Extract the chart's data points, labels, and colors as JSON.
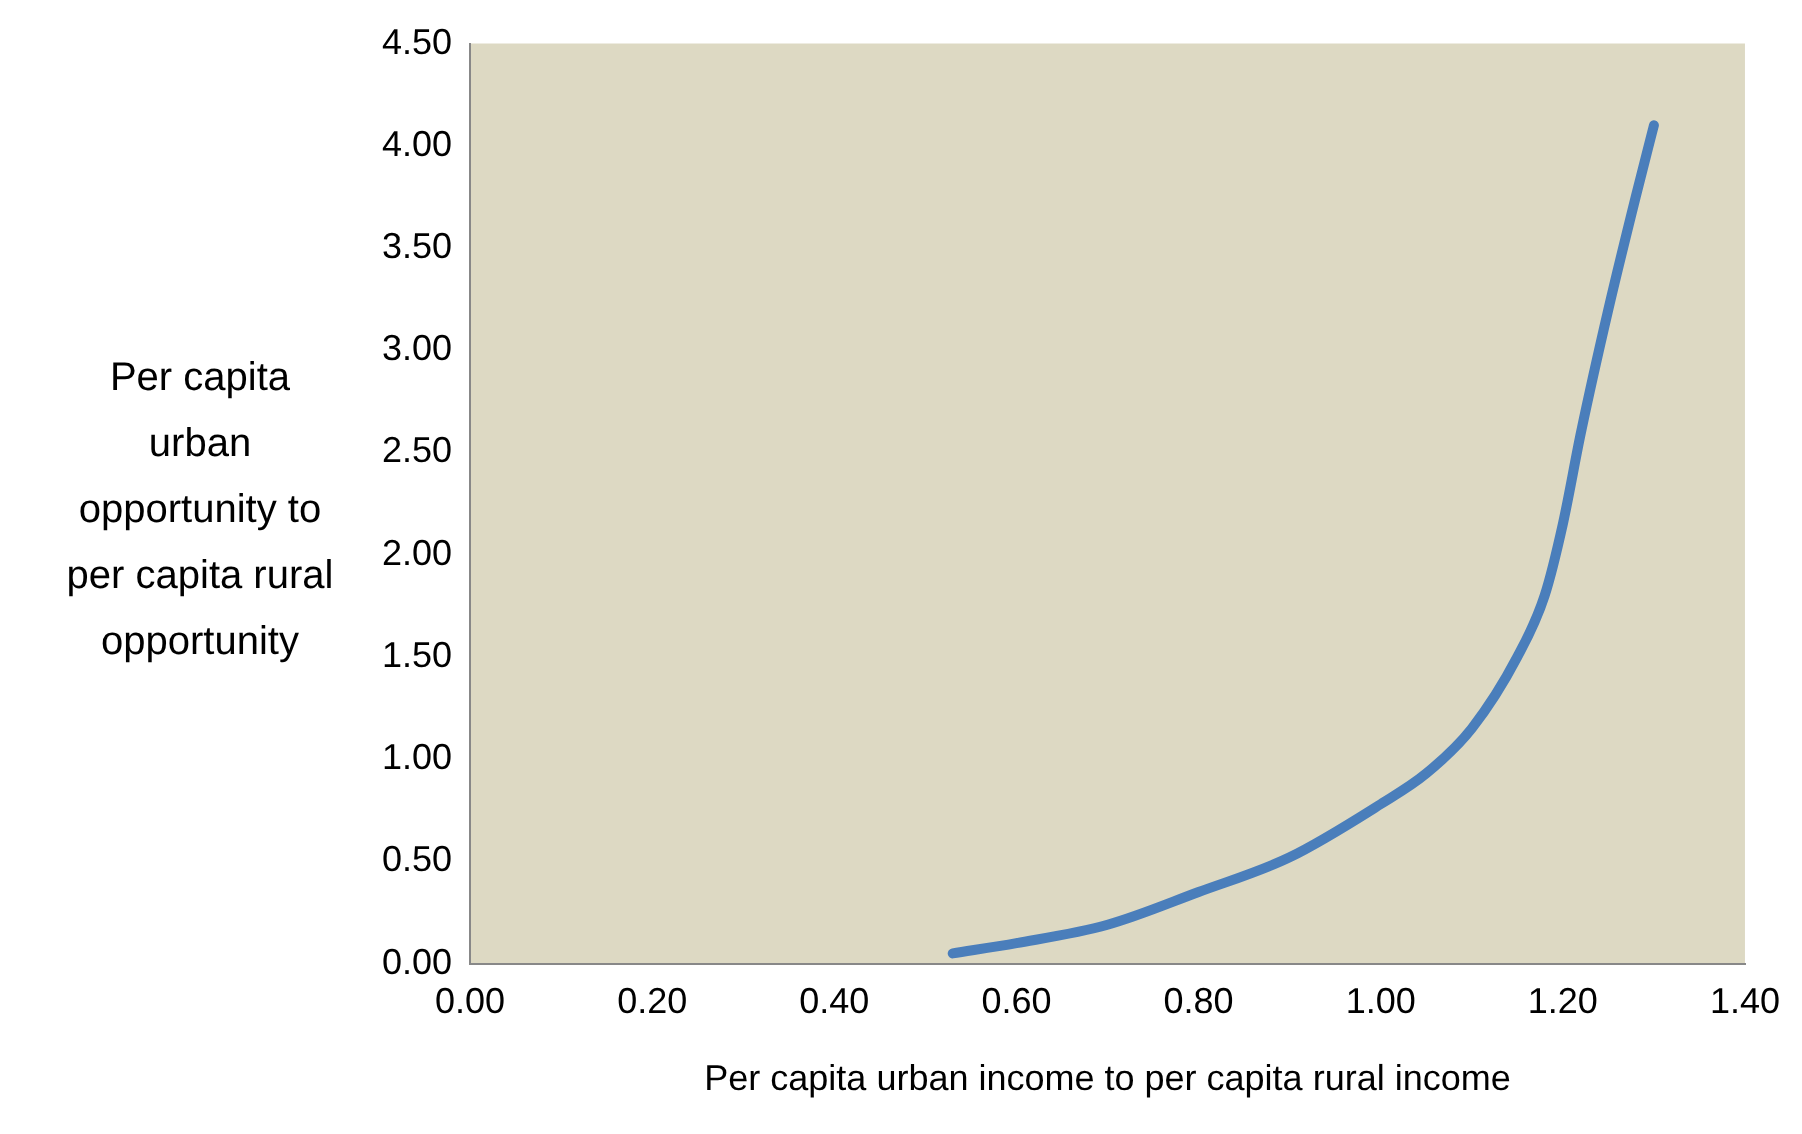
{
  "chart_data": {
    "type": "line",
    "xlabel": "Per capita urban income to per capita rural income",
    "ylabel": "Per capita\nurban\nopportunity to\nper capita rural\nopportunity",
    "x": [
      0.53,
      0.6,
      0.7,
      0.8,
      0.9,
      1.0,
      1.05,
      1.1,
      1.15,
      1.18,
      1.2,
      1.22,
      1.25,
      1.28,
      1.3
    ],
    "series": [
      {
        "color": "#4a7ebb",
        "values": [
          0.05,
          0.1,
          0.19,
          0.35,
          0.52,
          0.78,
          0.93,
          1.15,
          1.5,
          1.8,
          2.15,
          2.6,
          3.2,
          3.75,
          4.1
        ]
      }
    ],
    "xlim": [
      0,
      1.4
    ],
    "xticks": [
      {
        "value": 0,
        "label": "0.00"
      },
      {
        "value": 0.2,
        "label": "0.20"
      },
      {
        "value": 0.4,
        "label": "0.40"
      },
      {
        "value": 0.6,
        "label": "0.60"
      },
      {
        "value": 0.8,
        "label": "0.80"
      },
      {
        "value": 1,
        "label": "1.00"
      },
      {
        "value": 1.2,
        "label": "1.20"
      },
      {
        "value": 1.4,
        "label": "1.40"
      }
    ],
    "ylim": [
      0,
      4.5
    ],
    "yticks": [
      {
        "value": 0,
        "label": "0.00"
      },
      {
        "value": 0.5,
        "label": "0.50"
      },
      {
        "value": 1,
        "label": "1.00"
      },
      {
        "value": 1.5,
        "label": "1.50"
      },
      {
        "value": 2,
        "label": "2.00"
      },
      {
        "value": 2.5,
        "label": "2.50"
      },
      {
        "value": 3,
        "label": "3.00"
      },
      {
        "value": 3.5,
        "label": "3.50"
      },
      {
        "value": 4,
        "label": "4.00"
      },
      {
        "value": 4.5,
        "label": "4.50"
      }
    ],
    "grid": false,
    "legend": false,
    "marker": "none",
    "line_style": "solid"
  }
}
